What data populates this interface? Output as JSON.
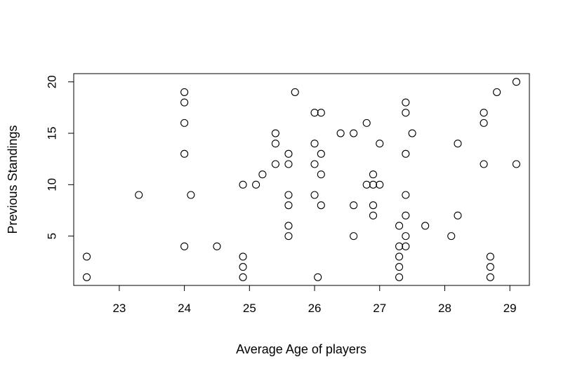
{
  "chart_data": {
    "type": "scatter",
    "title": "",
    "xlabel": "Average Age of players",
    "ylabel": "Previous Standings",
    "xlim": [
      22.3,
      29.3
    ],
    "ylim": [
      0.2,
      20.8
    ],
    "xticks": [
      23,
      24,
      25,
      26,
      27,
      28,
      29
    ],
    "yticks": [
      5,
      10,
      15,
      20
    ],
    "grid": false,
    "legend": "none",
    "marker": "open-circle",
    "points": [
      [
        22.5,
        3
      ],
      [
        22.5,
        1
      ],
      [
        23.3,
        9
      ],
      [
        24.0,
        19
      ],
      [
        24.0,
        18
      ],
      [
        24.0,
        16
      ],
      [
        24.0,
        13
      ],
      [
        24.0,
        4
      ],
      [
        24.1,
        9
      ],
      [
        24.5,
        4
      ],
      [
        24.9,
        10
      ],
      [
        24.9,
        3
      ],
      [
        24.9,
        2
      ],
      [
        24.9,
        1
      ],
      [
        25.1,
        10
      ],
      [
        25.2,
        11
      ],
      [
        25.4,
        15
      ],
      [
        25.4,
        14
      ],
      [
        25.4,
        12
      ],
      [
        25.6,
        13
      ],
      [
        25.6,
        12
      ],
      [
        25.6,
        9
      ],
      [
        25.6,
        8
      ],
      [
        25.6,
        6
      ],
      [
        25.6,
        5
      ],
      [
        25.7,
        19
      ],
      [
        26.0,
        17
      ],
      [
        26.0,
        14
      ],
      [
        26.0,
        12
      ],
      [
        26.0,
        9
      ],
      [
        26.05,
        1
      ],
      [
        26.1,
        17
      ],
      [
        26.1,
        13
      ],
      [
        26.1,
        11
      ],
      [
        26.1,
        8
      ],
      [
        26.4,
        15
      ],
      [
        26.6,
        15
      ],
      [
        26.6,
        8
      ],
      [
        26.6,
        5
      ],
      [
        26.8,
        16
      ],
      [
        26.8,
        10
      ],
      [
        26.9,
        11
      ],
      [
        26.9,
        10
      ],
      [
        26.9,
        8
      ],
      [
        26.9,
        7
      ],
      [
        27.0,
        14
      ],
      [
        27.0,
        10
      ],
      [
        27.3,
        6
      ],
      [
        27.3,
        4
      ],
      [
        27.3,
        3
      ],
      [
        27.3,
        2
      ],
      [
        27.3,
        1
      ],
      [
        27.4,
        18
      ],
      [
        27.4,
        17
      ],
      [
        27.4,
        13
      ],
      [
        27.4,
        9
      ],
      [
        27.4,
        7
      ],
      [
        27.4,
        5
      ],
      [
        27.4,
        4
      ],
      [
        27.5,
        15
      ],
      [
        27.7,
        6
      ],
      [
        28.1,
        5
      ],
      [
        28.2,
        14
      ],
      [
        28.2,
        7
      ],
      [
        28.6,
        17
      ],
      [
        28.6,
        16
      ],
      [
        28.6,
        12
      ],
      [
        28.7,
        3
      ],
      [
        28.7,
        2
      ],
      [
        28.7,
        1
      ],
      [
        28.8,
        19
      ],
      [
        29.1,
        20
      ],
      [
        29.1,
        12
      ]
    ]
  }
}
